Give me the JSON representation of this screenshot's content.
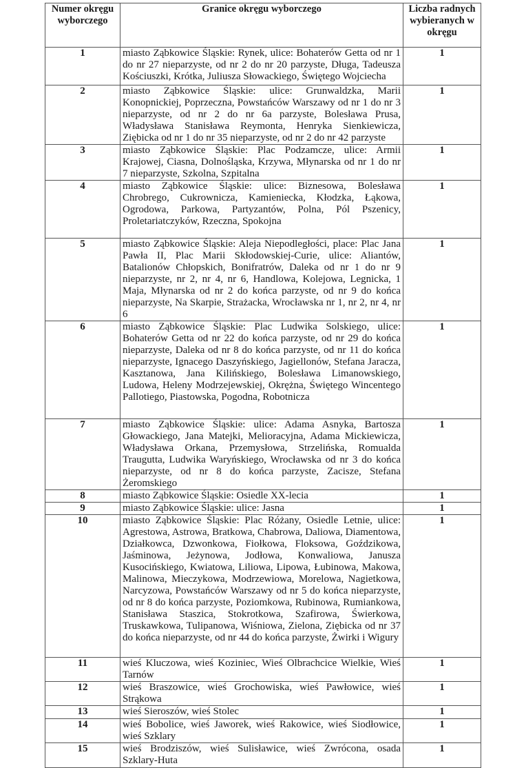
{
  "headers": {
    "number": "Numer okręgu wyborczego",
    "boundaries": "Granice okręgu wyborczego",
    "councillors": "Liczba radnych wybieranych w okręgu"
  },
  "rows": [
    {
      "number": "1",
      "boundaries": "miasto Ząbkowice Śląskie: Rynek, ulice: Bohaterów Getta od nr 1 do nr 27 nieparzyste, od nr 2 do nr 20 parzyste, Długa, Tadeusza Kościuszki, Krótka, Juliusza Słowackiego, Świętego Wojciecha",
      "councillors": "1"
    },
    {
      "number": "2",
      "boundaries": "miasto Ząbkowice Śląskie: ulice: Grunwaldzka, Marii Konopnickiej, Poprzeczna, Powstańców Warszawy od nr 1 do nr 3 nieparzyste, od nr 2 do nr 6a parzyste, Bolesława Prusa, Władysława Stanisława Reymonta, Henryka Sienkiewicza, Ziębicka od nr 1 do nr 35 nieparzyste, od nr 2 do nr 42 parzyste",
      "councillors": "1"
    },
    {
      "number": "3",
      "boundaries": "miasto Ząbkowice Śląskie: Plac Podzamcze, ulice: Armii Krajowej, Ciasna, Dolnośląska, Krzywa, Młynarska od nr 1 do nr 7 nieparzyste, Szkolna, Szpitalna",
      "councillors": "1"
    },
    {
      "number": "4",
      "boundaries": "miasto Ząbkowice Śląskie: ulice: Biznesowa, Bolesława Chrobrego, Cukrownicza, Kamieniecka, Kłodzka, Łąkowa, Ogrodowa, Parkowa, Partyzantów, Polna, Pól Pszenicy, Proletariatczyków, Rzeczna, Spokojna",
      "councillors": "1"
    },
    {
      "number": "5",
      "boundaries": "miasto Ząbkowice Śląskie: Aleja Niepodległości, place: Plac Jana Pawła II, Plac Marii Skłodowskiej-Curie, ulice: Aliantów, Batalionów Chłopskich, Bonifratrów, Daleka od nr 1 do nr 9 nieparzyste, nr 2, nr 4, nr 6, Handlowa, Kolejowa, Legnicka, 1 Maja, Młynarska od nr 2 do końca parzyste, od nr 9 do końca nieparzyste, Na Skarpie, Strażacka, Wrocławska nr 1, nr 2, nr 4, nr 6",
      "councillors": "1"
    },
    {
      "number": "6",
      "boundaries": "miasto Ząbkowice Śląskie: Plac Ludwika Solskiego, ulice: Bohaterów Getta od nr 22 do końca parzyste, od nr 29 do końca nieparzyste, Daleka od nr 8 do końca parzyste, od nr 11 do końca nieparzyste, Ignacego Daszyńskiego, Jagiellonów, Stefana Jaracza, Kasztanowa, Jana Kilińskiego, Bolesława Limanowskiego, Ludowa, Heleny Modrzejewskiej, Okrężna, Świętego Wincentego Pallotiego, Piastowska, Pogodna, Robotnicza",
      "councillors": "1"
    },
    {
      "number": "7",
      "boundaries": "miasto Ząbkowice Śląskie: ulice: Adama Asnyka, Bartosza Głowackiego, Jana Matejki, Melioracyjna, Adama Mickiewicza, Władysława Orkana, Przemysłowa, Strzelińska, Romualda Traugutta, Ludwika Waryńskiego, Wrocławska od nr 3 do końca nieparzyste, od nr 8 do końca parzyste, Zacisze, Stefana Żeromskiego",
      "councillors": "1"
    },
    {
      "number": "8",
      "boundaries": "miasto Ząbkowice Śląskie: Osiedle XX-lecia",
      "councillors": "1"
    },
    {
      "number": "9",
      "boundaries": "miasto Ząbkowice Śląskie: ulice: Jasna",
      "councillors": "1"
    },
    {
      "number": "10",
      "boundaries": "miasto Ząbkowice Śląskie: Plac Różany, Osiedle Letnie, ulice: Agrestowa, Astrowa, Bratkowa, Chabrowa, Daliowa, Diamentowa, Działkowca, Dzwonkowa, Fiołkowa, Floksowa, Goździkowa, Jaśminowa, Jeżynowa, Jodłowa, Konwaliowa, Janusza Kusocińskiego, Kwiatowa, Liliowa, Lipowa, Łubinowa, Makowa, Malinowa, Mieczykowa, Modrzewiowa, Morelowa, Nagietkowa, Narcyzowa, Powstańców Warszawy od nr 5 do końca nieparzyste, od nr 8 do końca parzyste, Poziomkowa, Rubinowa, Rumiankowa, Stanisława Staszica, Stokrotkowa, Szafirowa, Świerkowa, Truskawkowa, Tulipanowa, Wiśniowa, Zielona, Ziębicka od nr 37 do końca nieparzyste, od nr 44 do końca parzyste, Żwirki i Wigury",
      "councillors": "1"
    },
    {
      "number": "11",
      "boundaries": "wieś Kluczowa, wieś Koziniec, Wieś Olbrachcice Wielkie, Wieś Tarnów",
      "councillors": "1"
    },
    {
      "number": "12",
      "boundaries": "wieś Braszowice, wieś Grochowiska, wieś Pawłowice, wieś Strąkowa",
      "councillors": "1"
    },
    {
      "number": "13",
      "boundaries": "wieś Sieroszów, wieś Stolec",
      "councillors": "1"
    },
    {
      "number": "14",
      "boundaries": "wieś Bobolice, wieś Jaworek, wieś Rakowice, wieś Siodłowice, wieś Szklary",
      "councillors": "1"
    },
    {
      "number": "15",
      "boundaries": "wieś Brodziszów, wieś Sulisławice, wieś Zwrócona, osada Szklary-Huta",
      "councillors": "1"
    }
  ]
}
